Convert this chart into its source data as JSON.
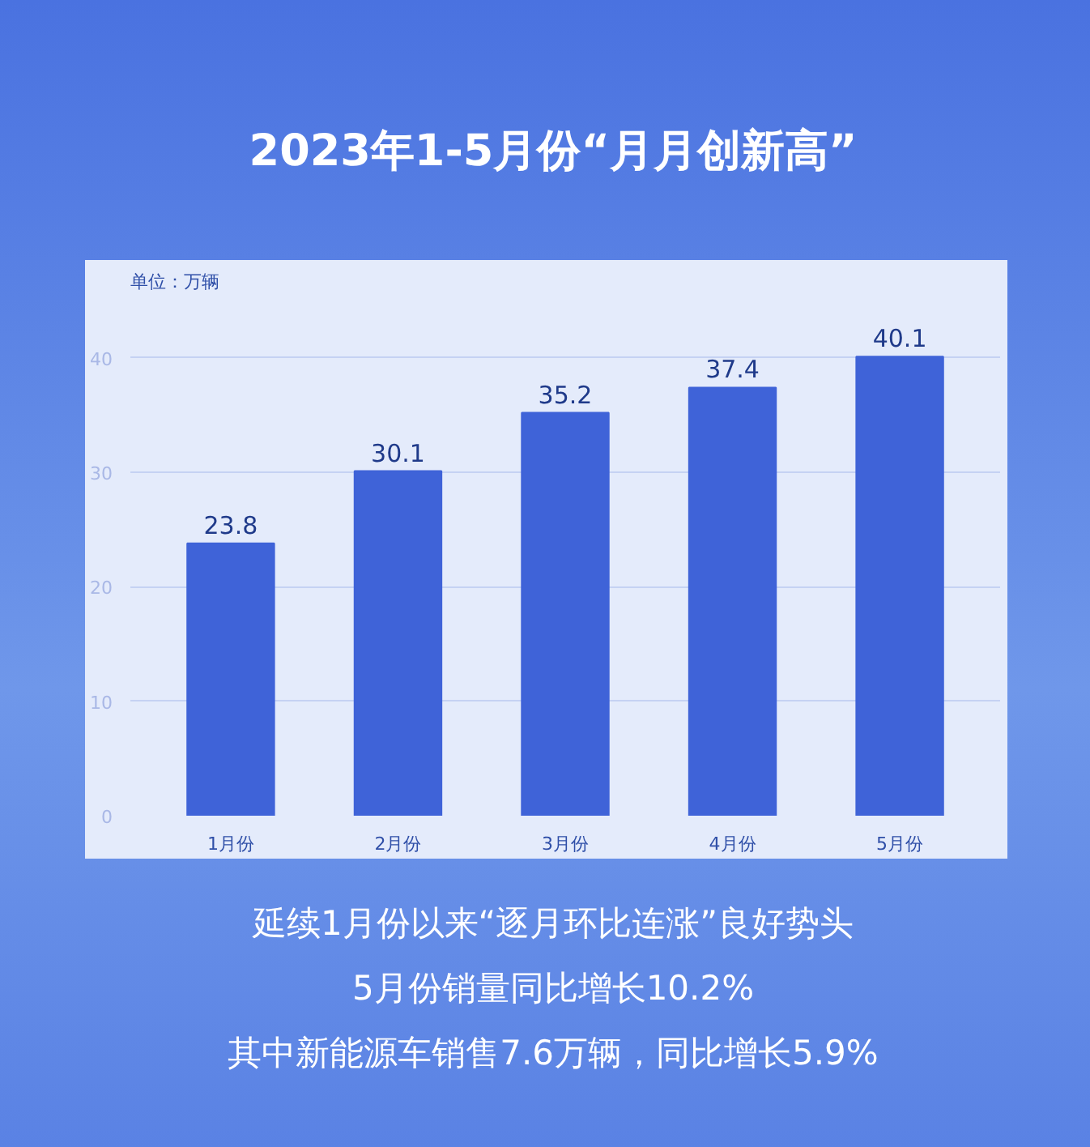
{
  "chart_data": {
    "type": "bar",
    "title": "2023年1-5月份“月月创新高”",
    "ylabel": "单位：万辆",
    "categories": [
      "1月份",
      "2月份",
      "3月份",
      "4月份",
      "5月份"
    ],
    "values": [
      23.8,
      30.1,
      35.2,
      37.4,
      40.1
    ],
    "color": "#3f63d8",
    "ylim": [
      0,
      45
    ],
    "yticks": [
      0,
      10,
      20,
      30,
      40
    ],
    "grid": "y",
    "data_labels": true,
    "annotations": [
      "延续1月份以来“逐月环比连涨”良好势头",
      "5月份销量同比增长10.2%",
      "其中新能源车销售7.6万辆，同比增长5.9%"
    ]
  }
}
